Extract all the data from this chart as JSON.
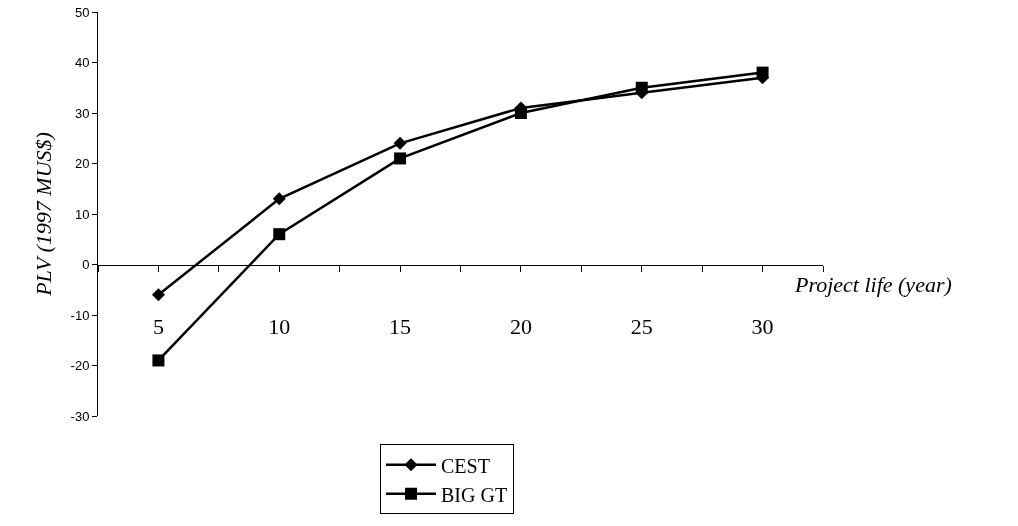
{
  "chart_data": {
    "type": "line",
    "xlabel": "Project life (year)",
    "ylabel": "PLV (1997 MUS$)",
    "categories": [
      "5",
      "10",
      "15",
      "20",
      "25",
      "30"
    ],
    "series": [
      {
        "name": "CEST",
        "color": "#000000",
        "marker": "diamond",
        "values": [
          -6,
          13,
          24,
          31,
          34,
          37
        ]
      },
      {
        "name": "BIG GT",
        "color": "#000000",
        "marker": "square",
        "values": [
          -19,
          6,
          21,
          30,
          35,
          38
        ]
      }
    ],
    "ylim": [
      -30,
      50
    ],
    "yticks": [
      -30,
      -20,
      -10,
      0,
      10,
      20,
      30,
      40,
      50
    ],
    "grid": false,
    "legend": "bottom",
    "line_style": "solid"
  }
}
